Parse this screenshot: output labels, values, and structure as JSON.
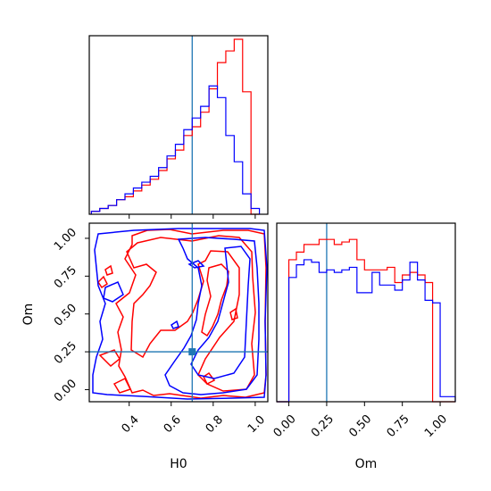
{
  "chart_data": {
    "type": "corner",
    "parameters": [
      "H0",
      "Om"
    ],
    "truths": {
      "H0": 0.7,
      "Om": 0.25
    },
    "colors": {
      "series_a": "#ff0000",
      "series_b": "#0000ff",
      "truth": "#1f77b4"
    },
    "panels": [
      {
        "id": "h0-marginal",
        "type": "histogram",
        "parameter": "H0",
        "xlim": [
          0.21,
          1.06
        ],
        "bins": [
          0.22,
          0.26,
          0.3,
          0.34,
          0.38,
          0.42,
          0.46,
          0.5,
          0.54,
          0.58,
          0.62,
          0.66,
          0.7,
          0.74,
          0.78,
          0.82,
          0.86,
          0.9,
          0.94,
          0.98,
          1.02
        ],
        "series": [
          {
            "color": "red",
            "values": [
              1,
              2,
              3,
              5,
              6,
              8,
              10,
              12,
              15,
              19,
              22,
              27,
              30,
              35,
              43,
              52,
              56,
              60,
              42,
              0
            ]
          },
          {
            "color": "blue",
            "values": [
              1,
              2,
              3,
              5,
              7,
              9,
              11,
              13,
              16,
              20,
              24,
              29,
              33,
              37,
              44,
              40,
              27,
              18,
              7,
              2
            ]
          }
        ]
      },
      {
        "id": "om-marginal",
        "type": "histogram",
        "parameter": "Om",
        "xlim": [
          -0.08,
          1.1
        ],
        "bins": [
          -0.08,
          0.0,
          0.05,
          0.1,
          0.15,
          0.2,
          0.25,
          0.3,
          0.35,
          0.4,
          0.45,
          0.5,
          0.55,
          0.6,
          0.65,
          0.7,
          0.75,
          0.8,
          0.85,
          0.9,
          0.95,
          1.0,
          1.1
        ],
        "series": [
          {
            "color": "red",
            "values": [
              0,
              56,
              59,
              62,
              62,
              64,
              64,
              62,
              63,
              64,
              56,
              52,
              52,
              52,
              53,
              47,
              50,
              51,
              50,
              47,
              0,
              0
            ]
          },
          {
            "color": "blue",
            "values": [
              0,
              49,
              54,
              56,
              55,
              51,
              52,
              51,
              52,
              53,
              43,
              43,
              51,
              46,
              46,
              44,
              48,
              55,
              48,
              40,
              39,
              2
            ]
          }
        ]
      },
      {
        "id": "joint",
        "type": "contour",
        "x": "H0",
        "y": "Om",
        "xlim": [
          0.21,
          1.06
        ],
        "ylim": [
          -0.08,
          1.1
        ],
        "levels": 3,
        "series": [
          "red",
          "blue"
        ]
      }
    ],
    "axes": {
      "joint_x": {
        "label": "H0",
        "ticks": [
          0.4,
          0.6,
          0.8,
          1.0
        ],
        "tick_labels": [
          "0.4",
          "0.6",
          "0.8",
          "1.0"
        ]
      },
      "joint_y": {
        "label": "Om",
        "ticks": [
          0.0,
          0.25,
          0.5,
          0.75,
          1.0
        ],
        "tick_labels": [
          "0.00",
          "0.25",
          "0.50",
          "0.75",
          "1.00"
        ]
      },
      "om_x": {
        "label": "Om",
        "ticks": [
          0.0,
          0.25,
          0.5,
          0.75,
          1.0
        ],
        "tick_labels": [
          "0.00",
          "0.25",
          "0.50",
          "0.75",
          "1.00"
        ]
      },
      "h0_top_ticks": [
        0.4,
        0.6,
        0.8,
        1.0
      ]
    }
  }
}
